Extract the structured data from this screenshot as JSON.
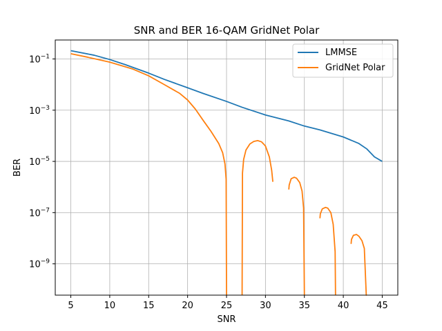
{
  "chart_data": {
    "type": "line",
    "title": "SNR and BER 16-QAM GridNet Polar",
    "xlabel": "SNR",
    "ylabel": "BER",
    "xlim": [
      3,
      47
    ],
    "ylim": [
      6e-11,
      0.55
    ],
    "yscale": "log",
    "grid": true,
    "legend_position": "top-right",
    "xticks": [
      5,
      10,
      15,
      20,
      25,
      30,
      35,
      40,
      45
    ],
    "xtick_labels": [
      "5",
      "10",
      "15",
      "20",
      "25",
      "30",
      "35",
      "40",
      "45"
    ],
    "yticks": [
      1e-09,
      1e-07,
      1e-05,
      0.001,
      0.1
    ],
    "ytick_labels": [
      {
        "base": "10",
        "exp": "−9"
      },
      {
        "base": "10",
        "exp": "−7"
      },
      {
        "base": "10",
        "exp": "−5"
      },
      {
        "base": "10",
        "exp": "−3"
      },
      {
        "base": "10",
        "exp": "−1"
      }
    ],
    "series": [
      {
        "name": "LMMSE",
        "color": "#1f77b4",
        "x": [
          5,
          8,
          10,
          12,
          15,
          17,
          20,
          22,
          25,
          27,
          30,
          33,
          35,
          37,
          40,
          42,
          43,
          44,
          45
        ],
        "y": [
          0.21,
          0.14,
          0.095,
          0.06,
          0.028,
          0.016,
          0.0075,
          0.0045,
          0.0022,
          0.0013,
          0.00065,
          0.00038,
          0.00024,
          0.00017,
          9e-05,
          5e-05,
          3.1e-05,
          1.5e-05,
          1e-05
        ]
      },
      {
        "name": "GridNet Polar",
        "color": "#ff7f0e",
        "x": [
          5,
          7,
          10,
          13,
          15,
          17,
          19,
          20,
          21,
          22,
          23,
          24,
          24.5,
          24.8,
          24.95,
          25.0,
          null,
          27.0,
          27.05,
          27.2,
          27.5,
          28,
          28.5,
          29,
          29.5,
          30,
          30.5,
          30.8,
          30.95,
          null,
          33.0,
          33.05,
          33.3,
          33.7,
          34.0,
          34.4,
          34.7,
          34.9,
          35.0,
          null,
          37.0,
          37.05,
          37.3,
          37.7,
          38.0,
          38.4,
          38.7,
          38.95,
          39.0,
          null,
          41.0,
          41.05,
          41.3,
          41.7,
          42.0,
          42.4,
          42.7,
          42.95,
          43.0
        ],
        "y": [
          0.16,
          0.12,
          0.075,
          0.04,
          0.022,
          0.01,
          0.0045,
          0.0025,
          0.0011,
          0.0004,
          0.00015,
          5e-05,
          2.2e-05,
          8e-06,
          2e-06,
          6e-11,
          null,
          6e-11,
          3.5e-06,
          1.2e-05,
          2.8e-05,
          4.8e-05,
          6e-05,
          6.5e-05,
          5.8e-05,
          4e-05,
          1.5e-05,
          4.5e-06,
          1.6e-06,
          null,
          8e-07,
          1.2e-06,
          2.1e-06,
          2.4e-06,
          2.2e-06,
          1.5e-06,
          7e-07,
          1.5e-07,
          6e-11,
          null,
          6e-08,
          9e-08,
          1.4e-07,
          1.6e-07,
          1.5e-07,
          1e-07,
          3.5e-08,
          3e-09,
          6e-11,
          null,
          6e-09,
          9e-09,
          1.3e-08,
          1.4e-08,
          1.2e-08,
          8e-09,
          4e-09,
          6e-11,
          6e-11
        ]
      }
    ]
  }
}
